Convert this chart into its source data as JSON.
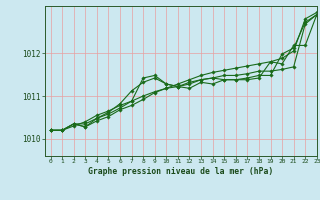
{
  "title": "Graphe pression niveau de la mer (hPa)",
  "bg_color": "#cce8f0",
  "grid_color": "#e8a0a0",
  "line_color": "#1a6b1a",
  "xlim": [
    -0.5,
    23
  ],
  "ylim": [
    1009.6,
    1013.1
  ],
  "yticks": [
    1010,
    1011,
    1012
  ],
  "xticks": [
    0,
    1,
    2,
    3,
    4,
    5,
    6,
    7,
    8,
    9,
    10,
    11,
    12,
    13,
    14,
    15,
    16,
    17,
    18,
    19,
    20,
    21,
    22,
    23
  ],
  "series": [
    [
      1010.2,
      1010.2,
      1010.3,
      1010.4,
      1010.55,
      1010.65,
      1010.78,
      1010.88,
      1011.0,
      1011.1,
      1011.18,
      1011.28,
      1011.38,
      1011.48,
      1011.55,
      1011.6,
      1011.65,
      1011.7,
      1011.75,
      1011.8,
      1011.88,
      1012.05,
      1012.8,
      1012.95
    ],
    [
      1010.2,
      1010.2,
      1010.35,
      1010.28,
      1010.48,
      1010.62,
      1010.82,
      1011.12,
      1011.32,
      1011.42,
      1011.28,
      1011.22,
      1011.28,
      1011.38,
      1011.42,
      1011.38,
      1011.38,
      1011.38,
      1011.42,
      1011.8,
      1011.75,
      1012.18,
      1012.18,
      1012.9
    ],
    [
      1010.2,
      1010.2,
      1010.35,
      1010.35,
      1010.48,
      1010.58,
      1010.72,
      1010.88,
      1011.42,
      1011.48,
      1011.28,
      1011.22,
      1011.18,
      1011.32,
      1011.28,
      1011.38,
      1011.38,
      1011.42,
      1011.48,
      1011.48,
      1011.98,
      1012.12,
      1012.72,
      1012.9
    ],
    [
      1010.2,
      1010.2,
      1010.35,
      1010.28,
      1010.42,
      1010.52,
      1010.68,
      1010.78,
      1010.92,
      1011.08,
      1011.18,
      1011.22,
      1011.32,
      1011.38,
      1011.42,
      1011.48,
      1011.48,
      1011.52,
      1011.58,
      1011.58,
      1011.62,
      1011.68,
      1012.68,
      1012.9
    ]
  ]
}
